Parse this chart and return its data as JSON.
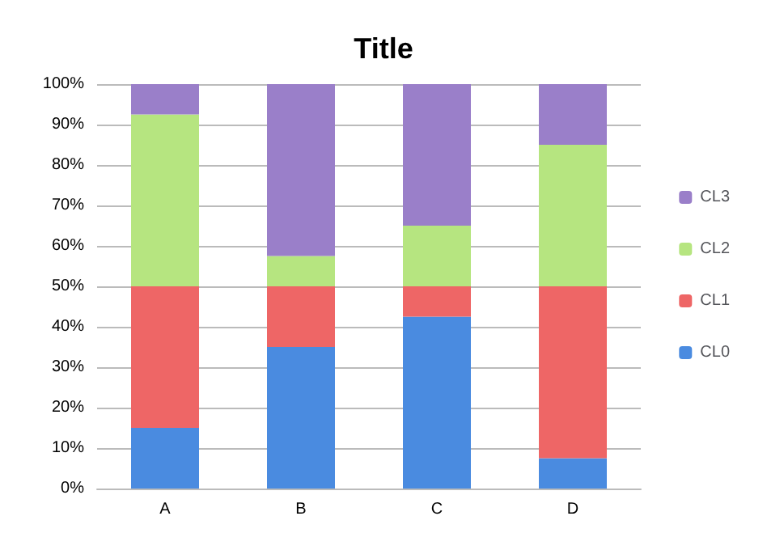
{
  "chart_data": {
    "type": "bar",
    "title": "Title",
    "stacked": true,
    "categories": [
      "A",
      "B",
      "C",
      "D"
    ],
    "series": [
      {
        "name": "CL0",
        "color": "#4a8be0",
        "values": [
          15,
          35,
          42.5,
          7.5
        ]
      },
      {
        "name": "CL1",
        "color": "#ee6666",
        "values": [
          35,
          15,
          7.5,
          42.5
        ]
      },
      {
        "name": "CL2",
        "color": "#b6e580",
        "values": [
          42.5,
          7.5,
          15,
          35
        ]
      },
      {
        "name": "CL3",
        "color": "#9a7fc9",
        "values": [
          7.5,
          42.5,
          35,
          15
        ]
      }
    ],
    "ylim": [
      0,
      100
    ],
    "yticks": [
      {
        "value": 0,
        "label": "0%"
      },
      {
        "value": 10,
        "label": "10%"
      },
      {
        "value": 20,
        "label": "20%"
      },
      {
        "value": 30,
        "label": "30%"
      },
      {
        "value": 40,
        "label": "40%"
      },
      {
        "value": 50,
        "label": "50%"
      },
      {
        "value": 60,
        "label": "60%"
      },
      {
        "value": 70,
        "label": "70%"
      },
      {
        "value": 80,
        "label": "80%"
      },
      {
        "value": 90,
        "label": "90%"
      },
      {
        "value": 100,
        "label": "100%"
      }
    ],
    "grid": "y",
    "legend": "right"
  }
}
